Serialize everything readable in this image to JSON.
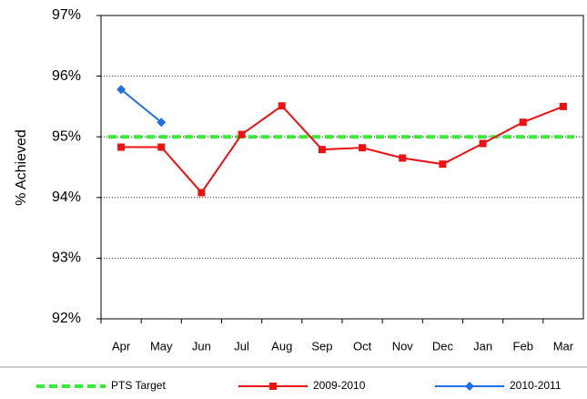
{
  "chart_data": {
    "type": "line",
    "y_label": "% Achieved",
    "categories": [
      "Apr",
      "May",
      "Jun",
      "Jul",
      "Aug",
      "Sep",
      "Oct",
      "Nov",
      "Dec",
      "Jan",
      "Feb",
      "Mar"
    ],
    "series": [
      {
        "name": "PTS Target",
        "color": "#33ee33",
        "style": "dashed",
        "values": [
          95,
          95,
          95,
          95,
          95,
          95,
          95,
          95,
          95,
          95,
          95,
          95
        ]
      },
      {
        "name": "2009-2010",
        "color": "#ee1111",
        "marker": "square",
        "values": [
          94.83,
          94.83,
          94.08,
          95.04,
          95.51,
          94.79,
          94.82,
          94.65,
          94.55,
          94.89,
          95.24,
          95.5
        ]
      },
      {
        "name": "2010-2011",
        "color": "#1f6fe6",
        "marker": "diamond",
        "values": [
          95.78,
          95.24,
          null,
          null,
          null,
          null,
          null,
          null,
          null,
          null,
          null,
          null
        ]
      }
    ],
    "ylim": [
      92,
      97
    ],
    "yticks": [
      {
        "value": 92,
        "label": "92%"
      },
      {
        "value": 93,
        "label": "93%"
      },
      {
        "value": 94,
        "label": "94%"
      },
      {
        "value": 95,
        "label": "95%"
      },
      {
        "value": 96,
        "label": "96%"
      },
      {
        "value": 97,
        "label": "97%"
      }
    ],
    "grid": true,
    "legend": "bottom"
  }
}
